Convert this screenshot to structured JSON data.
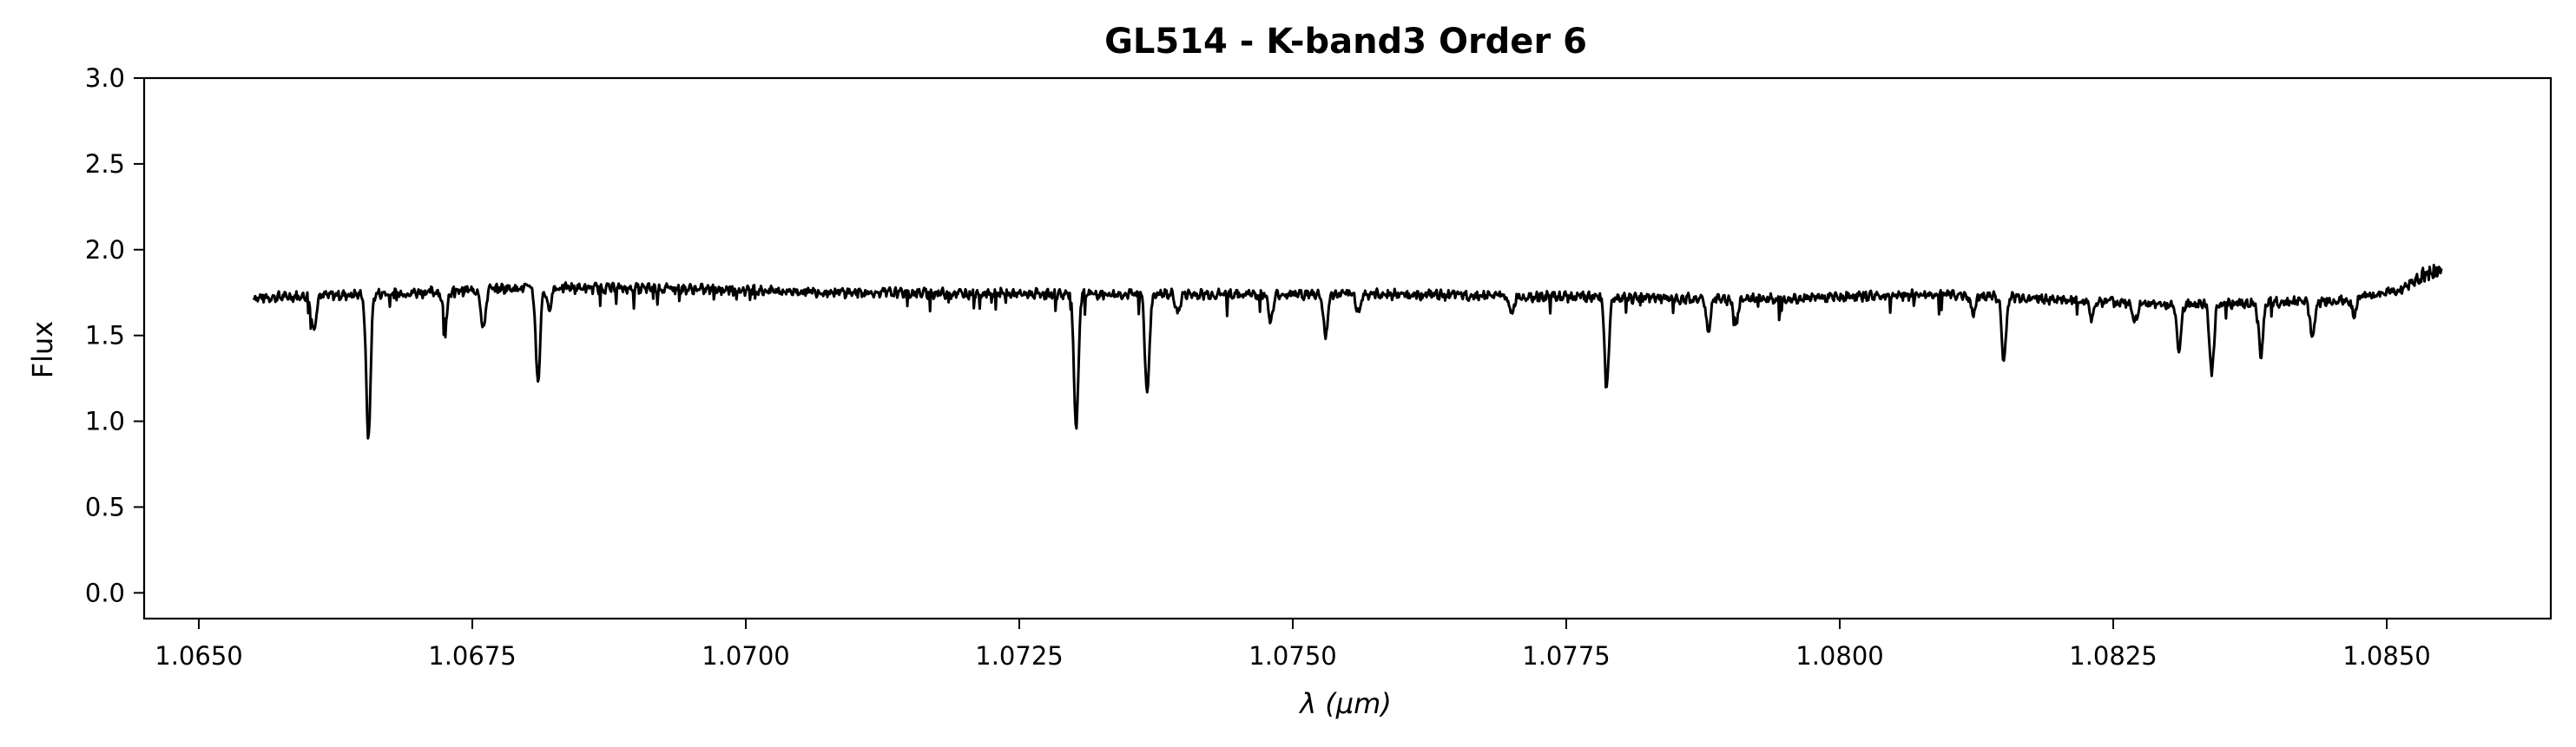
{
  "chart_data": {
    "type": "line",
    "title": "GL514 - K-band3 Order 6",
    "xlabel": "λ (μm)",
    "ylabel": "Flux",
    "xlim": [
      1.0645,
      1.0865
    ],
    "ylim": [
      -0.15,
      3.0
    ],
    "xticks": [
      "1.0650",
      "1.0675",
      "1.0700",
      "1.0725",
      "1.0750",
      "1.0775",
      "1.0800",
      "1.0825",
      "1.0850"
    ],
    "yticks": [
      "0.0",
      "0.5",
      "1.0",
      "1.5",
      "2.0",
      "2.5",
      "3.0"
    ],
    "grid": false,
    "series": [
      {
        "color": "#000000",
        "x_start": 1.0655,
        "x_end": 1.0855,
        "continuum": [
          [
            1.0655,
            1.72
          ],
          [
            1.067,
            1.75
          ],
          [
            1.068,
            1.78
          ],
          [
            1.0695,
            1.77
          ],
          [
            1.071,
            1.75
          ],
          [
            1.073,
            1.74
          ],
          [
            1.076,
            1.74
          ],
          [
            1.079,
            1.71
          ],
          [
            1.081,
            1.74
          ],
          [
            1.083,
            1.68
          ],
          [
            1.0845,
            1.7
          ],
          [
            1.0851,
            1.76
          ],
          [
            1.0855,
            1.9
          ]
        ],
        "absorption_lines": [
          {
            "x": 1.06655,
            "min": 0.9
          },
          {
            "x": 1.0681,
            "min": 1.23
          },
          {
            "x": 1.07302,
            "min": 0.95
          },
          {
            "x": 1.07367,
            "min": 1.17
          },
          {
            "x": 1.07787,
            "min": 1.21
          },
          {
            "x": 1.0815,
            "min": 1.35
          },
          {
            "x": 1.0834,
            "min": 1.27
          },
          {
            "x": 1.0831,
            "min": 1.42
          },
          {
            "x": 1.08385,
            "min": 1.38
          },
          {
            "x": 1.06605,
            "min": 1.53
          },
          {
            "x": 1.0676,
            "min": 1.53
          },
          {
            "x": 1.06725,
            "min": 1.58
          },
          {
            "x": 1.0682,
            "min": 1.65
          },
          {
            "x": 1.0753,
            "min": 1.5
          },
          {
            "x": 1.0748,
            "min": 1.58
          },
          {
            "x": 1.0788,
            "min": 1.53
          },
          {
            "x": 1.07905,
            "min": 1.57
          },
          {
            "x": 1.08432,
            "min": 1.48
          },
          {
            "x": 1.0847,
            "min": 1.62
          },
          {
            "x": 1.0827,
            "min": 1.58
          },
          {
            "x": 1.0823,
            "min": 1.6
          },
          {
            "x": 1.08122,
            "min": 1.62
          },
          {
            "x": 1.077,
            "min": 1.62
          },
          {
            "x": 1.0756,
            "min": 1.64
          },
          {
            "x": 1.07395,
            "min": 1.63
          }
        ]
      }
    ]
  }
}
